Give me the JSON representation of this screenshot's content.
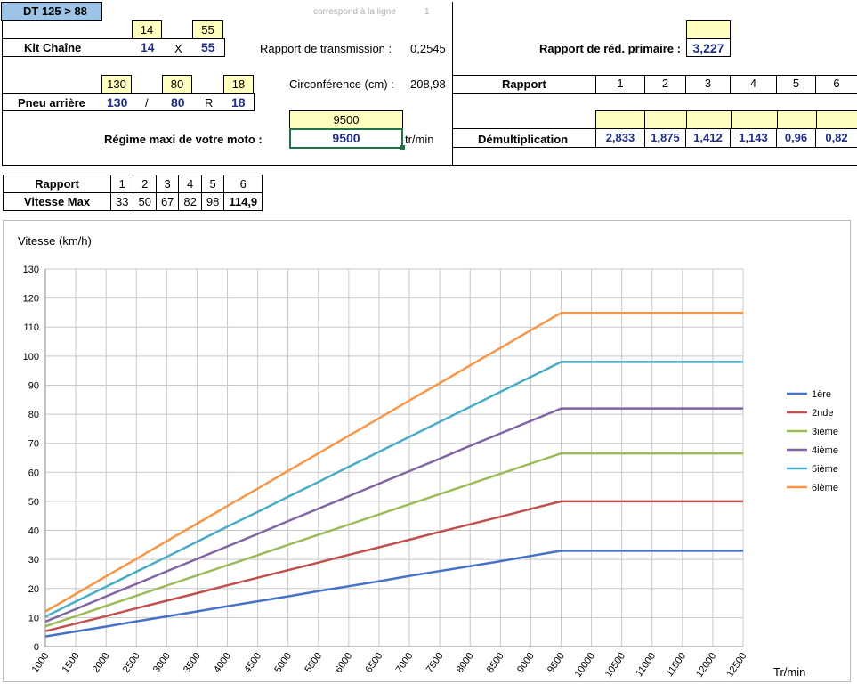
{
  "sheet": {
    "model_title": "DT 125 > 88",
    "row_note": "correspond à la ligne",
    "row_note_value": "1"
  },
  "chain": {
    "label": "Kit Chaîne",
    "front_input": "14",
    "rear_input": "55",
    "front": "14",
    "x": "X",
    "rear": "55"
  },
  "transmission": {
    "label": "Rapport de transmission :",
    "value": "0,2545"
  },
  "tire": {
    "label": "Pneu arrière",
    "width_input": "130",
    "ratio_input": "80",
    "rim_input": "18",
    "width": "130",
    "slash": "/",
    "ratio": "80",
    "r": "R",
    "rim": "18"
  },
  "circumference": {
    "label": "Circonférence (cm) :",
    "value": "208,98"
  },
  "rpm": {
    "label": "Régime maxi de votre moto :",
    "input": "9500",
    "value": "9500",
    "unit": "tr/min"
  },
  "primary": {
    "label": "Rapport  de réd. primaire :",
    "value": "3,227"
  },
  "gearbox": {
    "header_label": "Rapport",
    "gears": [
      "1",
      "2",
      "3",
      "4",
      "5",
      "6"
    ],
    "demult_label": "Démultiplication",
    "demult": [
      "2,833",
      "1,875",
      "1,412",
      "1,143",
      "0,96",
      "0,82"
    ]
  },
  "speed_table": {
    "row1_label": "Rapport",
    "row2_label": "Vitesse Max",
    "gears": [
      "1",
      "2",
      "3",
      "4",
      "5",
      "6"
    ],
    "speeds": [
      "33",
      "50",
      "67",
      "82",
      "98",
      "114,9"
    ]
  },
  "chart_data": {
    "type": "line",
    "title": "",
    "ylabel": "Vitesse (km/h)",
    "xlabel": "Tr/min",
    "x": [
      1000,
      1500,
      2000,
      2500,
      3000,
      3500,
      4000,
      4500,
      5000,
      5500,
      6000,
      6500,
      7000,
      7500,
      8000,
      8500,
      9000,
      9500,
      10000,
      10500,
      11000,
      11500,
      12000,
      12500
    ],
    "ylim": [
      0,
      130
    ],
    "yticks": [
      0,
      10,
      20,
      30,
      40,
      50,
      60,
      70,
      80,
      90,
      100,
      110,
      120,
      130
    ],
    "grid": true,
    "legend_position": "right",
    "series": [
      {
        "name": "1ère",
        "color": "#4472c4",
        "values": [
          3.5,
          5.2,
          6.9,
          8.7,
          10.4,
          12.1,
          13.9,
          15.6,
          17.3,
          19.1,
          20.8,
          22.5,
          24.3,
          26.0,
          27.7,
          29.4,
          31.2,
          33.0,
          33.0,
          33.0,
          33.0,
          33.0,
          33.0,
          33.0
        ]
      },
      {
        "name": "2nde",
        "color": "#c0504d",
        "values": [
          5.3,
          7.9,
          10.5,
          13.2,
          15.8,
          18.4,
          21.1,
          23.7,
          26.3,
          28.9,
          31.6,
          34.2,
          36.8,
          39.5,
          42.1,
          44.7,
          47.4,
          50.0,
          50.0,
          50.0,
          50.0,
          50.0,
          50.0,
          50.0
        ]
      },
      {
        "name": "3ième",
        "color": "#9bbb59",
        "values": [
          7.0,
          10.5,
          14.0,
          17.5,
          21.0,
          24.5,
          28.0,
          31.5,
          35.0,
          38.5,
          42.0,
          45.5,
          49.0,
          52.5,
          56.0,
          59.5,
          63.0,
          66.5,
          66.5,
          66.5,
          66.5,
          66.5,
          66.5,
          66.5
        ]
      },
      {
        "name": "4ième",
        "color": "#8064a2",
        "values": [
          8.6,
          12.9,
          17.3,
          21.6,
          25.9,
          30.2,
          34.5,
          38.8,
          43.2,
          47.5,
          51.8,
          56.1,
          60.4,
          64.7,
          69.1,
          73.4,
          77.7,
          82.0,
          82.0,
          82.0,
          82.0,
          82.0,
          82.0,
          82.0
        ]
      },
      {
        "name": "5ième",
        "color": "#4bacc6",
        "values": [
          10.3,
          15.5,
          20.6,
          25.8,
          30.9,
          36.1,
          41.3,
          46.4,
          51.6,
          56.7,
          61.9,
          67.1,
          72.2,
          77.4,
          82.5,
          87.7,
          92.8,
          98.0,
          98.0,
          98.0,
          98.0,
          98.0,
          98.0,
          98.0
        ]
      },
      {
        "name": "6ième",
        "color": "#f79646",
        "values": [
          12.1,
          18.1,
          24.2,
          30.2,
          36.3,
          42.3,
          48.4,
          54.4,
          60.5,
          66.5,
          72.6,
          78.6,
          84.7,
          90.7,
          96.8,
          102.8,
          108.9,
          114.9,
          114.9,
          114.9,
          114.9,
          114.9,
          114.9,
          114.9
        ]
      }
    ]
  }
}
